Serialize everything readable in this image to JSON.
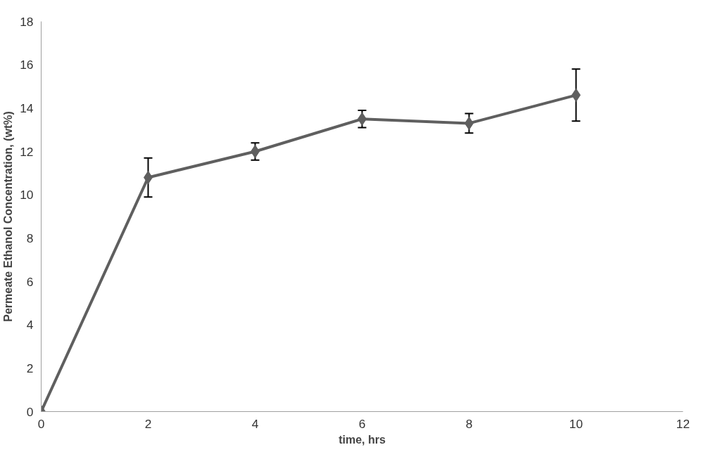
{
  "chart_data": {
    "type": "line",
    "xlabel": "time, hrs",
    "ylabel": "Permeate Ethanol Concentration, (wt%)",
    "x": [
      0,
      2,
      4,
      6,
      8,
      10
    ],
    "series": [
      {
        "color": "#5f5f5f",
        "values": [
          0,
          10.8,
          12.0,
          13.5,
          13.3,
          14.6
        ],
        "errors": [
          null,
          0.9,
          0.4,
          0.4,
          0.45,
          1.2
        ]
      }
    ],
    "xlim": [
      0,
      12
    ],
    "xticks": [
      0,
      2,
      4,
      6,
      8,
      10,
      12
    ],
    "ylim": [
      0,
      18
    ],
    "yticks": [
      0,
      2,
      4,
      6,
      8,
      10,
      12,
      14,
      16,
      18
    ],
    "grid": false,
    "marker": "diamond",
    "line_style": "solid"
  }
}
